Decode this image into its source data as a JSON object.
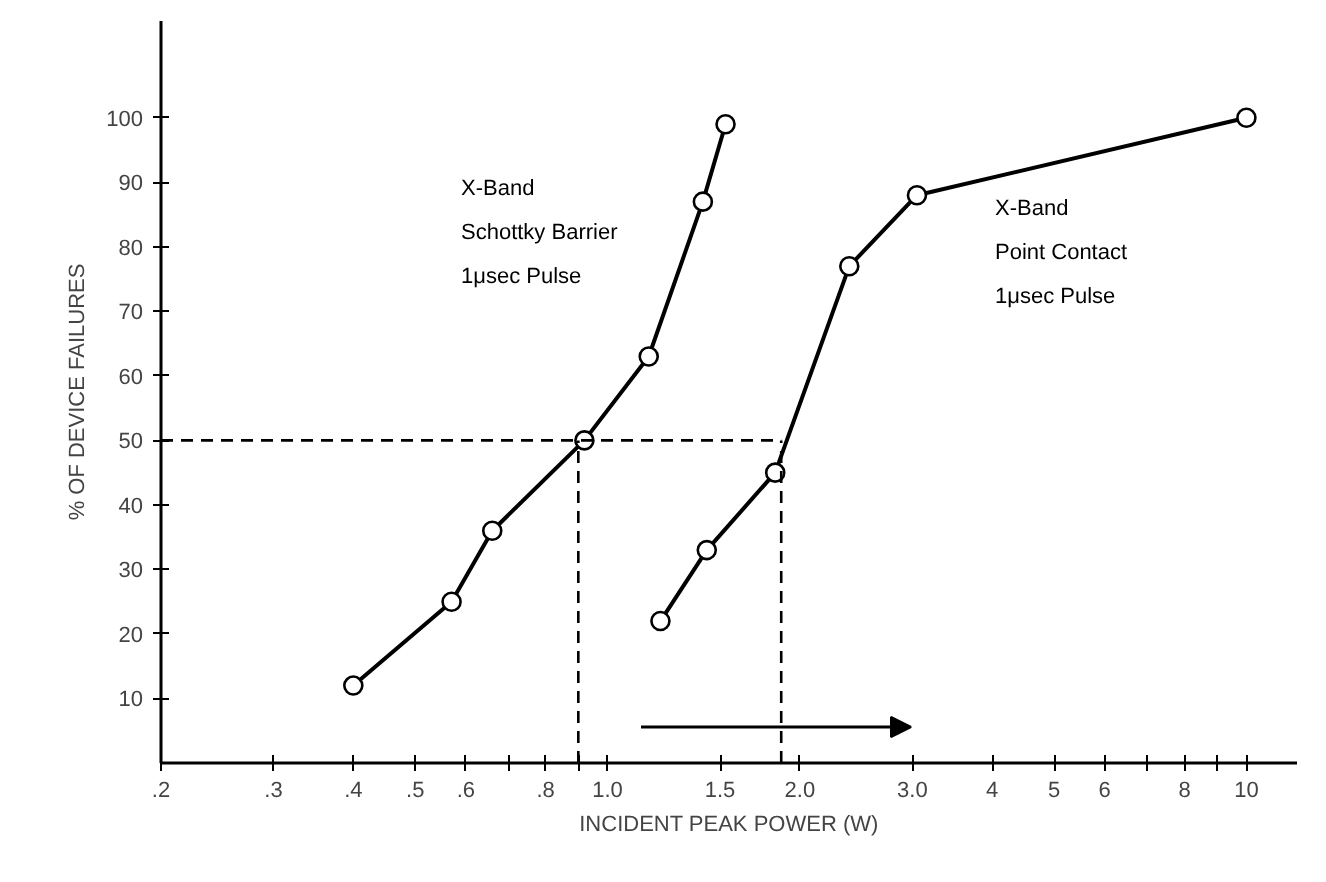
{
  "chart_data": {
    "type": "line",
    "xlabel": "INCIDENT PEAK POWER (W)",
    "ylabel": "% OF DEVICE FAILURES",
    "log": "x",
    "grid": false,
    "legend": false,
    "marker": "circle",
    "line_style": "solid",
    "xlim": [
      0.2,
      12
    ],
    "ylim": [
      0,
      115
    ],
    "xticks": [
      {
        "value": 0.2,
        "label": ".2"
      },
      {
        "value": 0.3,
        "label": ".3"
      },
      {
        "value": 0.4,
        "label": ".4"
      },
      {
        "value": 0.5,
        "label": ".5"
      },
      {
        "value": 0.6,
        "label": ".6"
      },
      {
        "value": 0.7,
        "label": null
      },
      {
        "value": 0.8,
        "label": ".8"
      },
      {
        "value": 0.9,
        "label": null
      },
      {
        "value": 1.0,
        "label": "1.0"
      },
      {
        "value": 1.5,
        "label": "1.5"
      },
      {
        "value": 2.0,
        "label": "2.0"
      },
      {
        "value": 3.0,
        "label": "3.0"
      },
      4,
      5,
      6,
      {
        "value": 7,
        "label": null
      },
      8,
      {
        "value": 9,
        "label": null
      },
      10
    ],
    "yticks": [
      10,
      20,
      30,
      40,
      50,
      60,
      70,
      80,
      90,
      100
    ],
    "series": [
      {
        "name": "X-Band\nSchottky Barrier\n1μsec Pulse",
        "color": "#000000",
        "x": [
          0.4,
          0.57,
          0.66,
          0.92,
          1.16,
          1.41,
          1.53
        ],
        "values": [
          12,
          25,
          36,
          50,
          63,
          87,
          99
        ]
      },
      {
        "name": "X-Band\nPoint Contact\n1μsec Pulse",
        "color": "#000000",
        "x": [
          1.21,
          1.43,
          1.83,
          2.39,
          3.05,
          10
        ],
        "values": [
          22,
          33,
          45,
          77,
          88,
          100
        ]
      }
    ],
    "ref_lines": [
      {
        "axis": "y",
        "value": 50,
        "color": "#000000",
        "line_style": "dashed"
      },
      {
        "axis": "x",
        "value": 0.9,
        "color": "#000000",
        "line_style": "dashed"
      },
      {
        "axis": "x",
        "value": 1.87,
        "color": "#000000",
        "line_style": "dashed"
      }
    ]
  }
}
